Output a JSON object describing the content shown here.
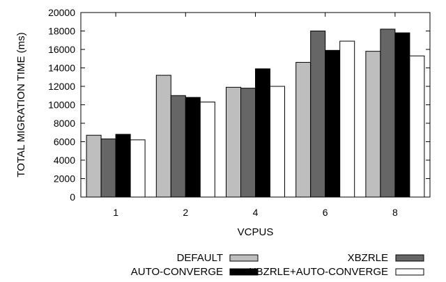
{
  "chart_data": {
    "type": "bar",
    "title": "",
    "xlabel": "VCPUS",
    "ylabel": "TOTAL MIGRATION TIME (ms)",
    "categories": [
      "1",
      "2",
      "4",
      "6",
      "8"
    ],
    "ylim": [
      0,
      20000
    ],
    "yticks": [
      0,
      2000,
      4000,
      6000,
      8000,
      10000,
      12000,
      14000,
      16000,
      18000,
      20000
    ],
    "grid": false,
    "legend_position": "bottom",
    "series": [
      {
        "name": "DEFAULT",
        "color": "#bebebe",
        "values": [
          6700,
          13200,
          11900,
          14600,
          15800
        ]
      },
      {
        "name": "XBZRLE",
        "color": "#666666",
        "values": [
          6300,
          11000,
          11800,
          18000,
          18200
        ]
      },
      {
        "name": "AUTO-CONVERGE",
        "color": "#000000",
        "values": [
          6800,
          10800,
          13900,
          15900,
          17800
        ]
      },
      {
        "name": "XBZRLE+AUTO-CONVERGE",
        "color": "#ffffff",
        "values": [
          6200,
          10300,
          12000,
          16900,
          15300
        ]
      }
    ]
  }
}
